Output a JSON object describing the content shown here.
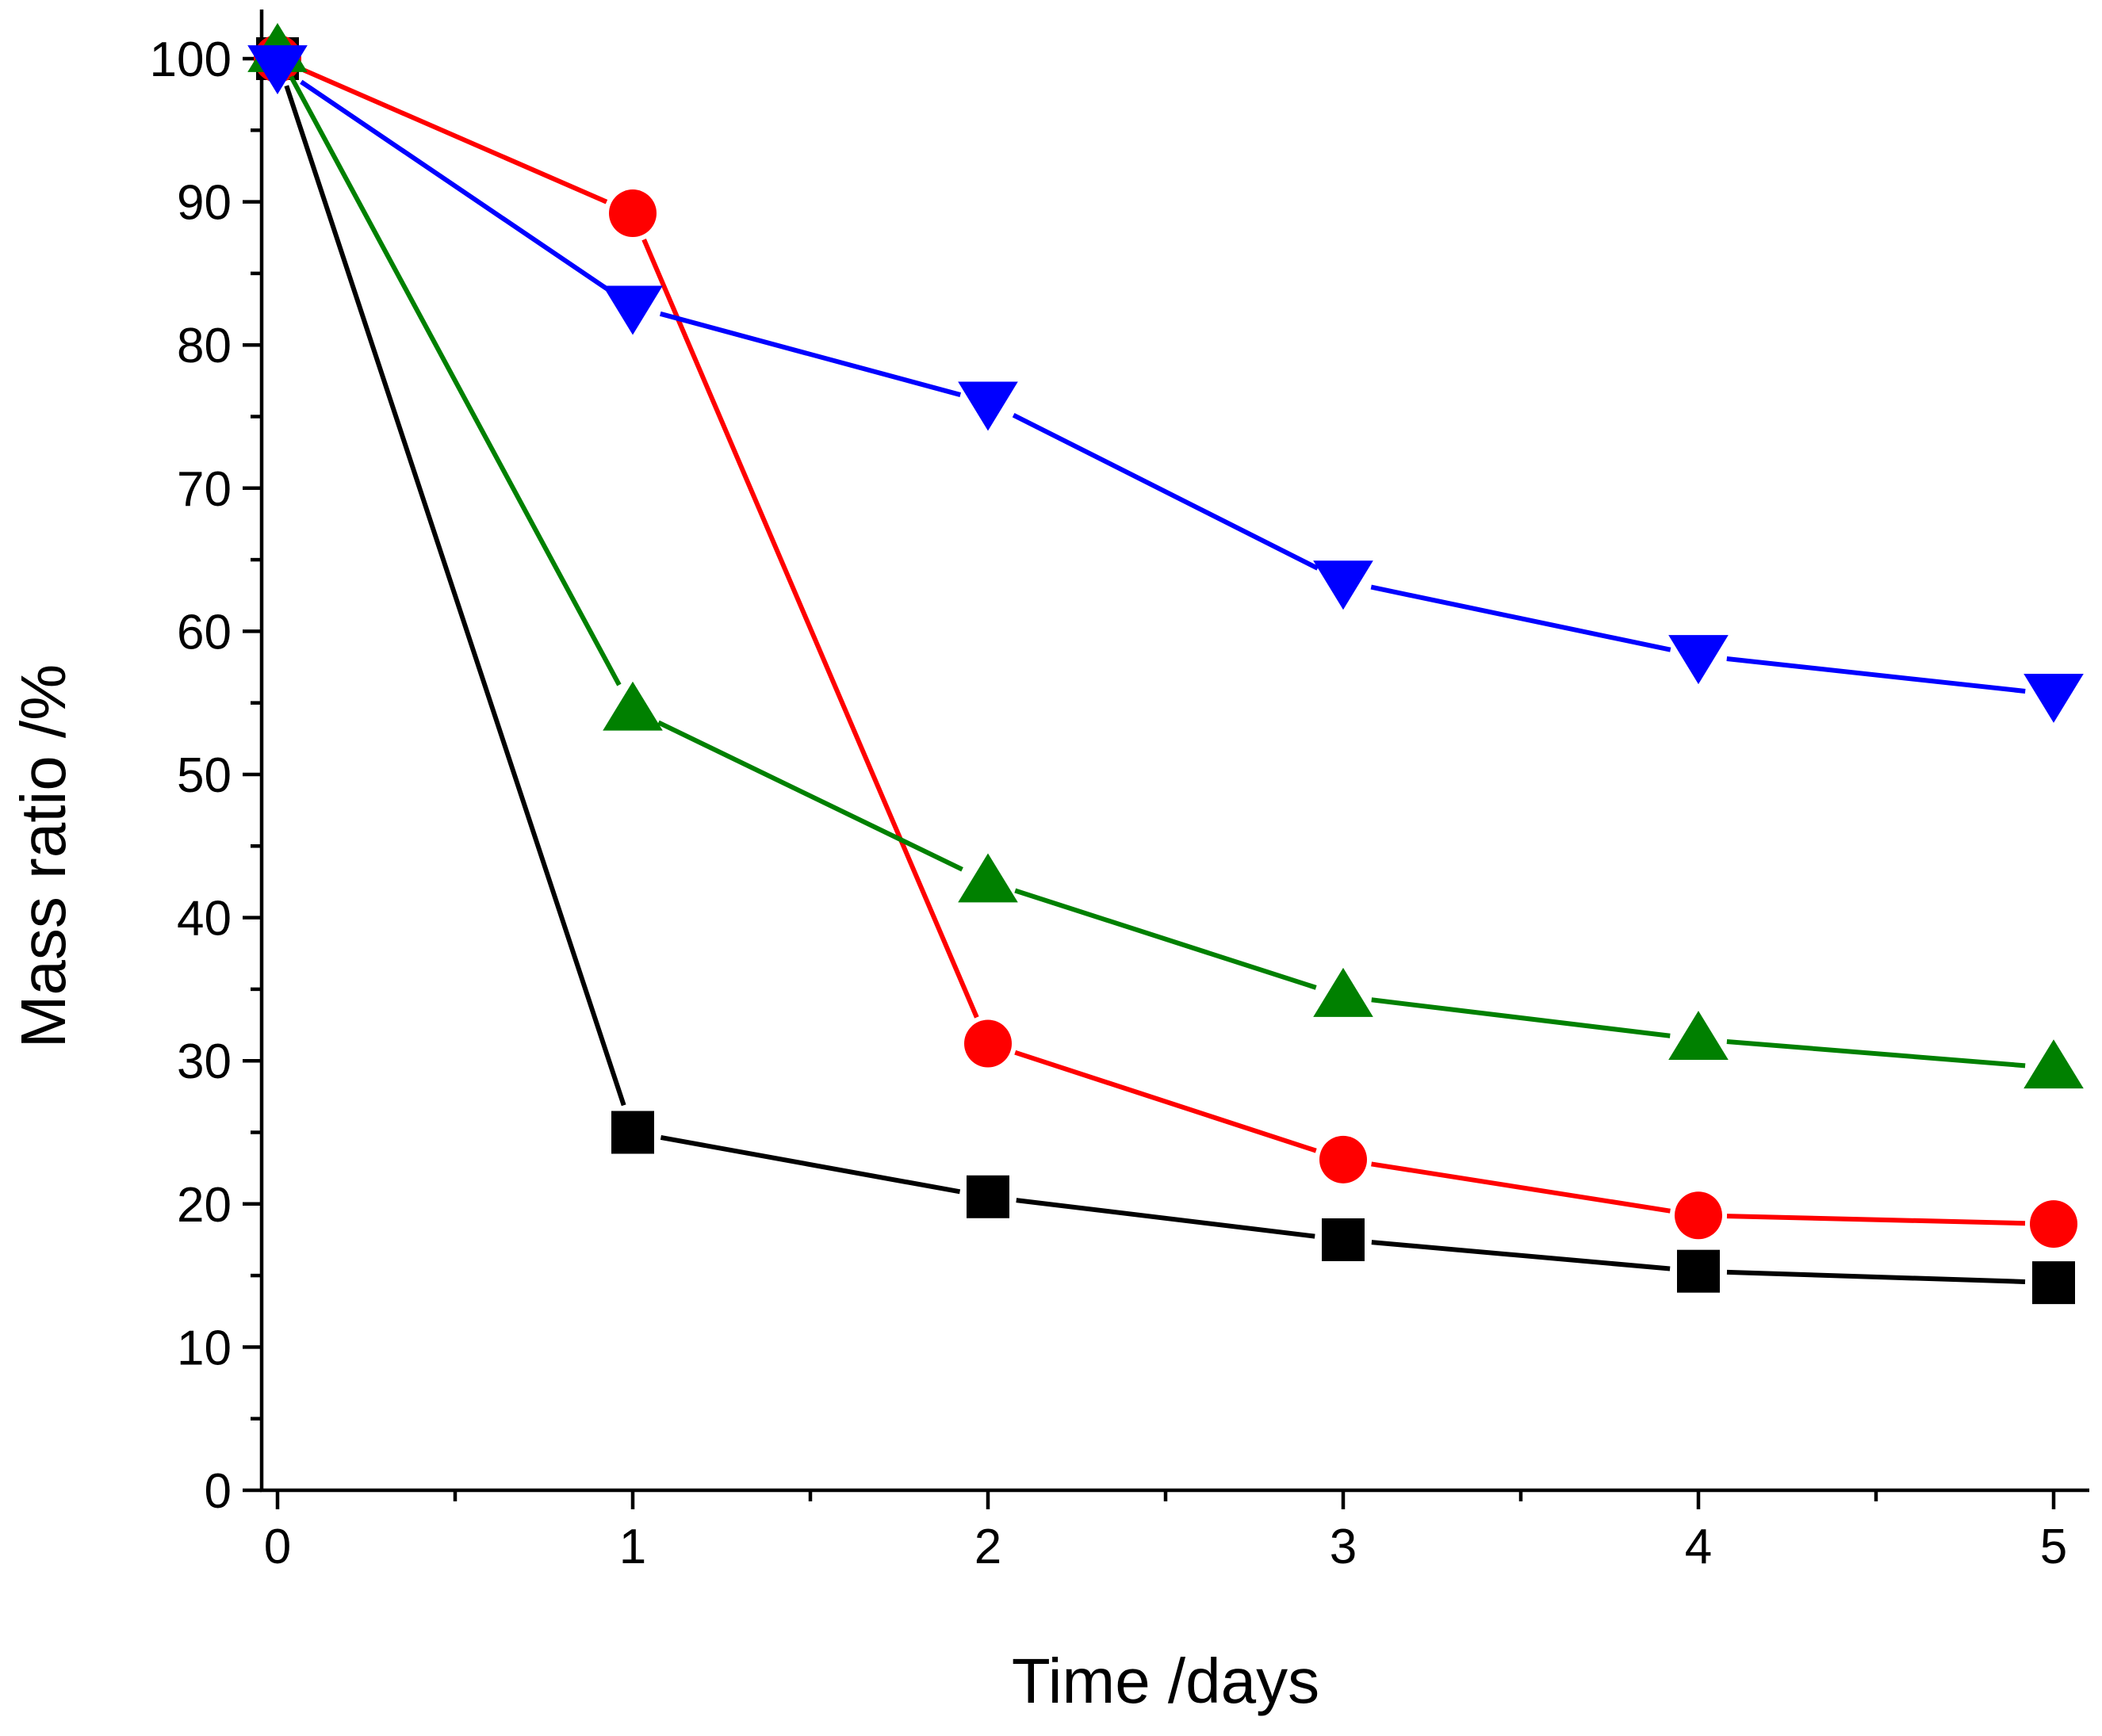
{
  "chart_data": {
    "type": "line",
    "title": "",
    "xlabel": "Time /days",
    "ylabel": "Mass ratio /%",
    "xlim": [
      -0.05,
      5.1
    ],
    "ylim": [
      0,
      103
    ],
    "x": [
      0,
      1,
      2,
      3,
      4,
      5
    ],
    "x_ticks": [
      0,
      1,
      2,
      3,
      4,
      5
    ],
    "x_tick_labels": [
      "0",
      "1",
      "2",
      "3",
      "4",
      "5"
    ],
    "y_ticks": [
      0,
      10,
      20,
      30,
      40,
      50,
      60,
      70,
      80,
      90,
      100
    ],
    "y_tick_labels": [
      "0",
      "10",
      "20",
      "30",
      "40",
      "50",
      "60",
      "70",
      "80",
      "90",
      "100"
    ],
    "grid": false,
    "legend": "none",
    "series": [
      {
        "name": "black squares",
        "color": "#000000",
        "marker": "square",
        "values": [
          100,
          25.0,
          20.5,
          17.5,
          15.3,
          14.5
        ]
      },
      {
        "name": "red circles",
        "color": "#ff0000",
        "marker": "circle",
        "values": [
          100,
          89.2,
          31.2,
          23.1,
          19.2,
          18.6
        ]
      },
      {
        "name": "green triangles",
        "color": "#008000",
        "marker": "triangle-up",
        "values": [
          100.5,
          54.5,
          42.5,
          34.5,
          31.5,
          29.5
        ]
      },
      {
        "name": "blue inverted triangles",
        "color": "#0000ff",
        "marker": "triangle-down",
        "values": [
          99.5,
          82.7,
          76.0,
          63.5,
          58.3,
          55.6
        ]
      }
    ]
  }
}
